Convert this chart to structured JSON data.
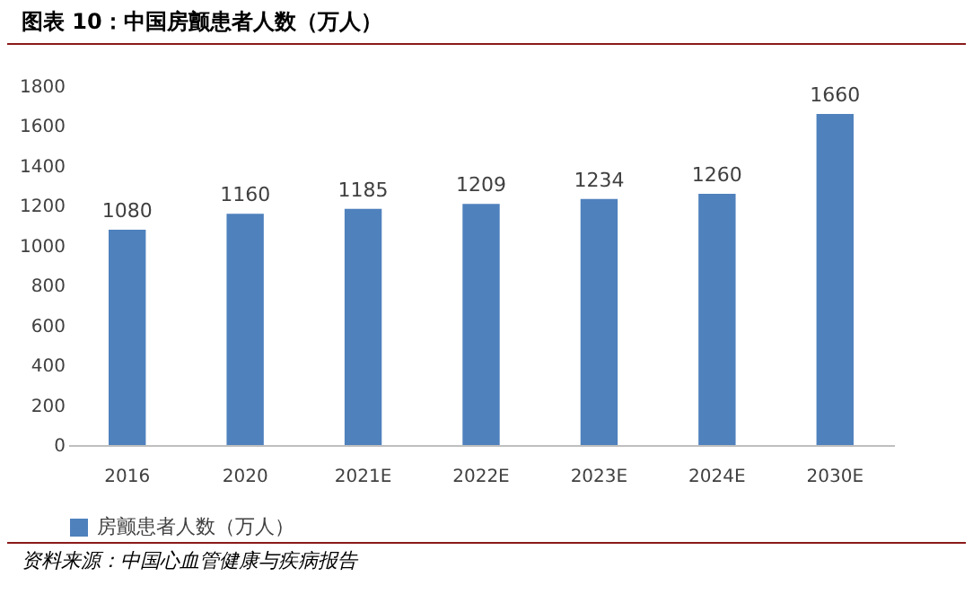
{
  "chart_data": {
    "type": "bar",
    "title": "图表 10：中国房颤患者人数（万人）",
    "categories": [
      "2016",
      "2020",
      "2021E",
      "2022E",
      "2023E",
      "2024E",
      "2030E"
    ],
    "series": [
      {
        "name": "房颤患者人数（万人）",
        "color": "#4f81bd",
        "values": [
          1080,
          1160,
          1185,
          1209,
          1234,
          1260,
          1660
        ]
      }
    ],
    "ylim": [
      0,
      1800
    ],
    "yticks": [
      0,
      200,
      400,
      600,
      800,
      1000,
      1200,
      1400,
      1600,
      1800
    ],
    "grid": false,
    "legend": "bottom",
    "data_labels": true,
    "annotations": [
      "资料来源：中国心血管健康与疾病报告"
    ]
  }
}
